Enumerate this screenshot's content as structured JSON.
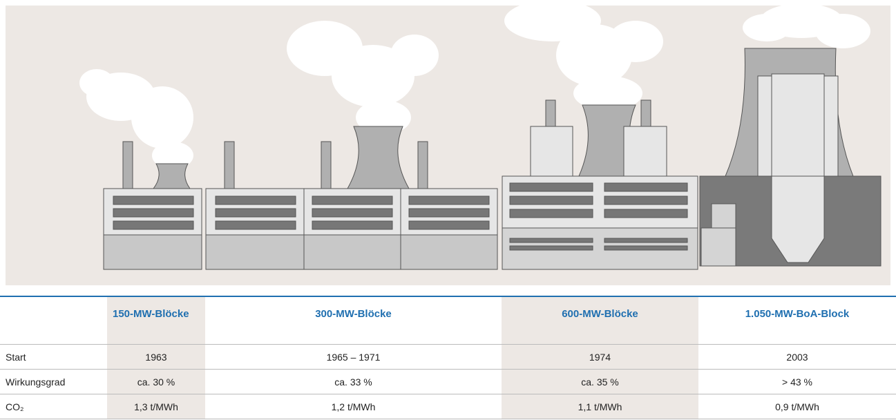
{
  "table": {
    "header": [
      "",
      "150-MW-Blöcke",
      "300-MW-Blöcke",
      "600-MW-Blöcke",
      "1.050-MW-BoA-Block"
    ],
    "rows": [
      [
        "Start",
        "1963",
        "1965 – 1971",
        "1974",
        "2003"
      ],
      [
        "Wirkungsgrad",
        "ca. 30 %",
        "ca. 33 %",
        "ca. 35 %",
        "> 43 %"
      ],
      [
        "CO₂",
        "1,3 t/MWh",
        "1,2 t/MWh",
        "1,1 t/MWh",
        "0,9 t/MWh"
      ]
    ]
  }
}
